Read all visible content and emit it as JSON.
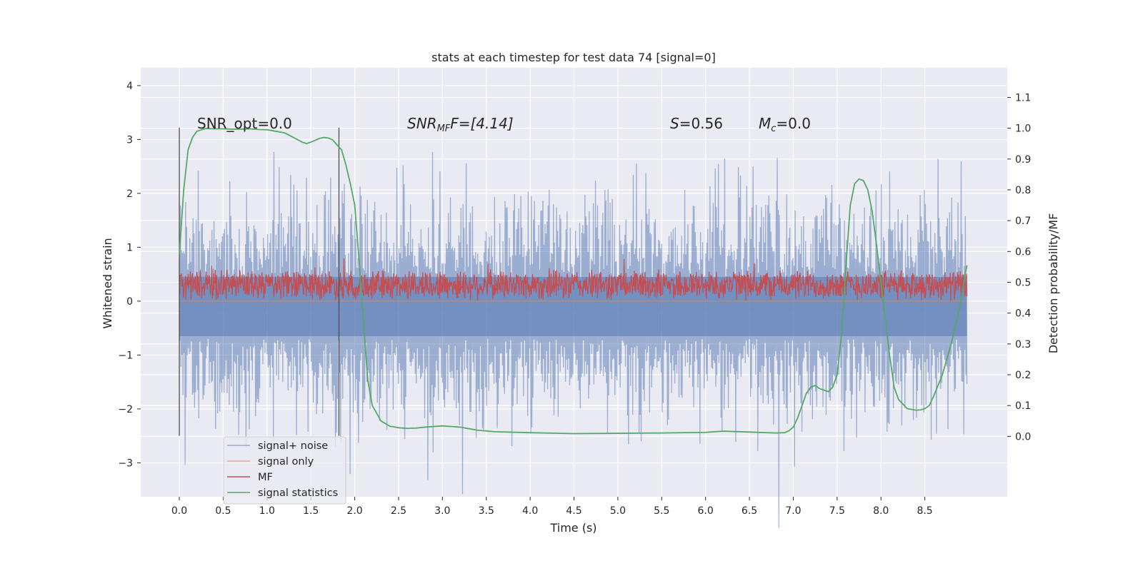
{
  "chart_data": {
    "type": "line",
    "title": "stats at each timestep for test data 74 [signal=0]",
    "xlabel": "Time (s)",
    "ylabel": "Whitened strain",
    "y2label": "Detection probability/MF",
    "xlim": [
      -0.44,
      9.44
    ],
    "ylim": [
      -3.63,
      4.33
    ],
    "y2lim": [
      -0.196,
      1.196
    ],
    "x_ticks": [
      "0.0",
      "0.5",
      "1.0",
      "1.5",
      "2.0",
      "2.5",
      "3.0",
      "3.5",
      "4.0",
      "4.5",
      "5.0",
      "5.5",
      "6.0",
      "6.5",
      "7.0",
      "7.5",
      "8.0",
      "8.5"
    ],
    "y_ticks": [
      "4",
      "3",
      "2",
      "1",
      "0",
      "−1",
      "−2",
      "−3"
    ],
    "y2_ticks": [
      "1.1",
      "1.0",
      "0.9",
      "0.8",
      "0.7",
      "0.6",
      "0.5",
      "0.4",
      "0.3",
      "0.2",
      "0.1",
      "0.0"
    ],
    "annotations": {
      "snr_opt": "SNR_opt=0.0",
      "snr_mf_label": "SNR",
      "snr_mf_sub": "MF",
      "snr_mf_value": "F=[4.14]",
      "s_label": "S",
      "s_value": "=0.56",
      "mc_label": "M",
      "mc_sub": "c",
      "mc_value": "=0.0"
    },
    "vlines": [
      0.0,
      1.82
    ],
    "vline_y": [
      -2.5,
      3.22
    ],
    "series": [
      {
        "name": "signal+ noise",
        "color": "#4c72b0",
        "axis": "left",
        "x_range": [
          0.0,
          8.98
        ],
        "envelope_pos": 2.6,
        "envelope_neg": -2.7
      },
      {
        "name": "signal only",
        "color": "#dd8452",
        "axis": "left",
        "x_range": [
          0.0,
          8.98
        ],
        "value": 0.0
      },
      {
        "name": "MF",
        "color": "#c44e52",
        "axis": "left",
        "x_range": [
          0.0,
          8.98
        ],
        "center": 0.3,
        "amplitude": 0.3
      },
      {
        "name": "signal statistics",
        "color": "#55a868",
        "axis": "right",
        "x": [
          0.0,
          0.05,
          0.1,
          0.15,
          0.2,
          0.3,
          0.4,
          0.5,
          0.6,
          0.7,
          0.8,
          0.9,
          1.0,
          1.1,
          1.2,
          1.3,
          1.4,
          1.45,
          1.5,
          1.6,
          1.65,
          1.7,
          1.75,
          1.8,
          1.85,
          1.9,
          1.95,
          2.0,
          2.05,
          2.1,
          2.15,
          2.2,
          2.3,
          2.4,
          2.5,
          2.6,
          2.7,
          2.8,
          3.0,
          3.2,
          3.4,
          3.6,
          4.0,
          4.5,
          5.0,
          5.5,
          6.0,
          6.2,
          6.5,
          6.8,
          6.9,
          6.95,
          7.0,
          7.05,
          7.1,
          7.15,
          7.2,
          7.25,
          7.3,
          7.35,
          7.4,
          7.45,
          7.5,
          7.55,
          7.6,
          7.65,
          7.7,
          7.75,
          7.8,
          7.85,
          7.9,
          7.95,
          8.0,
          8.05,
          8.1,
          8.15,
          8.2,
          8.3,
          8.4,
          8.45,
          8.5,
          8.55,
          8.6,
          8.7,
          8.8,
          8.9,
          8.95,
          8.98
        ],
        "y": [
          0.59,
          0.8,
          0.93,
          0.97,
          0.99,
          0.999,
          0.998,
          0.998,
          0.997,
          0.997,
          0.998,
          0.996,
          0.995,
          0.99,
          0.985,
          0.97,
          0.955,
          0.95,
          0.955,
          0.967,
          0.97,
          0.968,
          0.962,
          0.945,
          0.93,
          0.88,
          0.82,
          0.75,
          0.57,
          0.37,
          0.18,
          0.1,
          0.05,
          0.033,
          0.028,
          0.026,
          0.027,
          0.03,
          0.034,
          0.03,
          0.02,
          0.015,
          0.012,
          0.009,
          0.01,
          0.011,
          0.013,
          0.017,
          0.014,
          0.011,
          0.012,
          0.018,
          0.03,
          0.06,
          0.1,
          0.14,
          0.16,
          0.165,
          0.155,
          0.15,
          0.145,
          0.16,
          0.2,
          0.33,
          0.55,
          0.75,
          0.82,
          0.835,
          0.83,
          0.8,
          0.73,
          0.62,
          0.5,
          0.38,
          0.26,
          0.16,
          0.12,
          0.09,
          0.085,
          0.086,
          0.09,
          0.1,
          0.13,
          0.2,
          0.3,
          0.42,
          0.51,
          0.555
        ]
      }
    ],
    "legend": {
      "placement": "lower-left",
      "entries": [
        "signal+ noise",
        "signal only",
        "MF",
        "signal statistics"
      ]
    },
    "grid": true
  }
}
